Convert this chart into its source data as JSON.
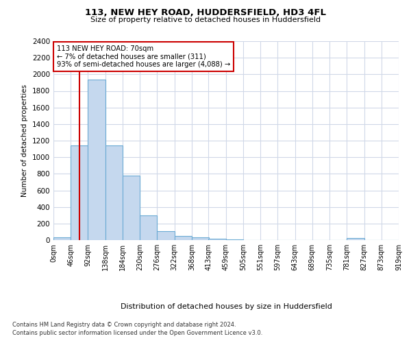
{
  "title": "113, NEW HEY ROAD, HUDDERSFIELD, HD3 4FL",
  "subtitle": "Size of property relative to detached houses in Huddersfield",
  "xlabel": "Distribution of detached houses by size in Huddersfield",
  "ylabel": "Number of detached properties",
  "bar_color": "#c5d8ee",
  "bar_edge_color": "#6aaad4",
  "bin_edges": [
    0,
    46,
    92,
    138,
    184,
    230,
    276,
    322,
    368,
    413,
    459,
    505,
    551,
    597,
    643,
    689,
    735,
    781,
    827,
    873,
    919
  ],
  "bar_heights": [
    35,
    1140,
    1940,
    1140,
    775,
    300,
    105,
    50,
    35,
    20,
    8,
    4,
    3,
    2,
    2,
    1,
    1,
    25,
    1,
    1
  ],
  "tick_labels": [
    "0sqm",
    "46sqm",
    "92sqm",
    "138sqm",
    "184sqm",
    "230sqm",
    "276sqm",
    "322sqm",
    "368sqm",
    "413sqm",
    "459sqm",
    "505sqm",
    "551sqm",
    "597sqm",
    "643sqm",
    "689sqm",
    "735sqm",
    "781sqm",
    "827sqm",
    "873sqm",
    "919sqm"
  ],
  "property_size": 70,
  "red_line_color": "#cc0000",
  "annotation_line1": "113 NEW HEY ROAD: 70sqm",
  "annotation_line2": "← 7% of detached houses are smaller (311)",
  "annotation_line3": "93% of semi-detached houses are larger (4,088) →",
  "annotation_box_color": "#ffffff",
  "annotation_box_edge": "#cc0000",
  "ylim": [
    0,
    2400
  ],
  "yticks": [
    0,
    200,
    400,
    600,
    800,
    1000,
    1200,
    1400,
    1600,
    1800,
    2000,
    2200,
    2400
  ],
  "footer_line1": "Contains HM Land Registry data © Crown copyright and database right 2024.",
  "footer_line2": "Contains public sector information licensed under the Open Government Licence v3.0.",
  "bg_color": "#ffffff",
  "grid_color": "#d0d8e8"
}
